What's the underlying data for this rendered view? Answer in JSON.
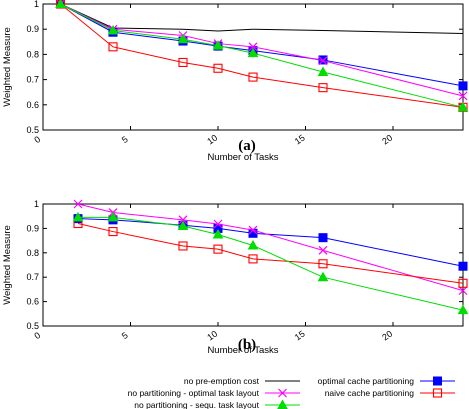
{
  "chart_data": [
    {
      "type": "line",
      "panel_label": "(a)",
      "xlabel": "Number of Tasks",
      "ylabel": "Weighted Measure",
      "xlim": [
        0,
        24
      ],
      "ylim": [
        0.5,
        1
      ],
      "xticks": [
        0,
        5,
        10,
        15,
        20
      ],
      "yticks": [
        0.5,
        0.6,
        0.7,
        0.8,
        0.9,
        1
      ],
      "grid": false,
      "series": [
        {
          "name": "no pre-emption cost",
          "color": "#000000",
          "marker": "none",
          "x": [
            1,
            4,
            8,
            10,
            12,
            16,
            24
          ],
          "y": [
            1.0,
            0.905,
            0.9,
            0.893,
            0.9,
            0.895,
            0.883
          ]
        },
        {
          "name": "optimal cache partitioning",
          "color": "#0000ff",
          "marker": "filled-square",
          "x": [
            1,
            4,
            8,
            10,
            12,
            16,
            24
          ],
          "y": [
            1.0,
            0.888,
            0.853,
            0.833,
            0.815,
            0.778,
            0.675
          ]
        },
        {
          "name": "no partitioning - optimal task layout",
          "color": "#ff00ff",
          "marker": "cross",
          "x": [
            1,
            4,
            8,
            10,
            12,
            16,
            24
          ],
          "y": [
            1.0,
            0.9,
            0.875,
            0.843,
            0.83,
            0.775,
            0.635
          ]
        },
        {
          "name": "naive cache partitioning",
          "color": "#ff0000",
          "marker": "open-square",
          "x": [
            1,
            4,
            8,
            10,
            12,
            16,
            24
          ],
          "y": [
            1.0,
            0.83,
            0.768,
            0.745,
            0.71,
            0.668,
            0.59
          ]
        },
        {
          "name": "no partitioning - sequ. task layout",
          "color": "#00dd00",
          "marker": "filled-triangle",
          "x": [
            1,
            4,
            8,
            10,
            12,
            16,
            24
          ],
          "y": [
            1.0,
            0.895,
            0.86,
            0.835,
            0.805,
            0.73,
            0.59
          ]
        }
      ]
    },
    {
      "type": "line",
      "panel_label": "(b)",
      "xlabel": "Number of Tasks",
      "ylabel": "Weighted Measure",
      "xlim": [
        0,
        24
      ],
      "ylim": [
        0.5,
        1
      ],
      "xticks": [
        0,
        5,
        10,
        15,
        20
      ],
      "yticks": [
        0.5,
        0.6,
        0.7,
        0.8,
        0.9,
        1
      ],
      "grid": false,
      "legend_position": "bottom",
      "series": [
        {
          "name": "no pre-emption cost",
          "color": "#000000",
          "marker": "none",
          "x": [
            2,
            4,
            8,
            10,
            12,
            16,
            24
          ],
          "y": [
            1.0,
            1.0,
            1.0,
            1.0,
            1.0,
            1.0,
            1.0
          ]
        },
        {
          "name": "optimal cache partitioning",
          "color": "#0000ff",
          "marker": "filled-square",
          "x": [
            2,
            4,
            8,
            10,
            12,
            16,
            24
          ],
          "y": [
            0.94,
            0.935,
            0.913,
            0.9,
            0.88,
            0.862,
            0.745
          ]
        },
        {
          "name": "no partitioning - optimal task layout",
          "color": "#ff00ff",
          "marker": "cross",
          "x": [
            2,
            4,
            8,
            10,
            12,
            16,
            24
          ],
          "y": [
            1.0,
            0.965,
            0.935,
            0.918,
            0.893,
            0.81,
            0.645
          ]
        },
        {
          "name": "naive cache partitioning",
          "color": "#ff0000",
          "marker": "open-square",
          "x": [
            2,
            4,
            8,
            10,
            12,
            16,
            24
          ],
          "y": [
            0.92,
            0.887,
            0.828,
            0.815,
            0.775,
            0.755,
            0.675
          ]
        },
        {
          "name": "no partitioning - sequ. task layout",
          "color": "#00dd00",
          "marker": "filled-triangle",
          "x": [
            2,
            4,
            8,
            10,
            12,
            16,
            24
          ],
          "y": [
            0.945,
            0.945,
            0.91,
            0.875,
            0.83,
            0.7,
            0.565
          ]
        }
      ]
    }
  ],
  "legend": {
    "left": [
      {
        "name": "no pre-emption cost",
        "color": "#000000",
        "marker": "none"
      },
      {
        "name": "no partitioning - optimal task layout",
        "color": "#ff00ff",
        "marker": "cross"
      },
      {
        "name": "no partitioning - sequ. task layout",
        "color": "#00dd00",
        "marker": "filled-triangle"
      }
    ],
    "right": [
      {
        "name": "optimal cache partitioning",
        "color": "#0000ff",
        "marker": "filled-square"
      },
      {
        "name": "naive cache partitioning",
        "color": "#ff0000",
        "marker": "open-square"
      }
    ]
  }
}
